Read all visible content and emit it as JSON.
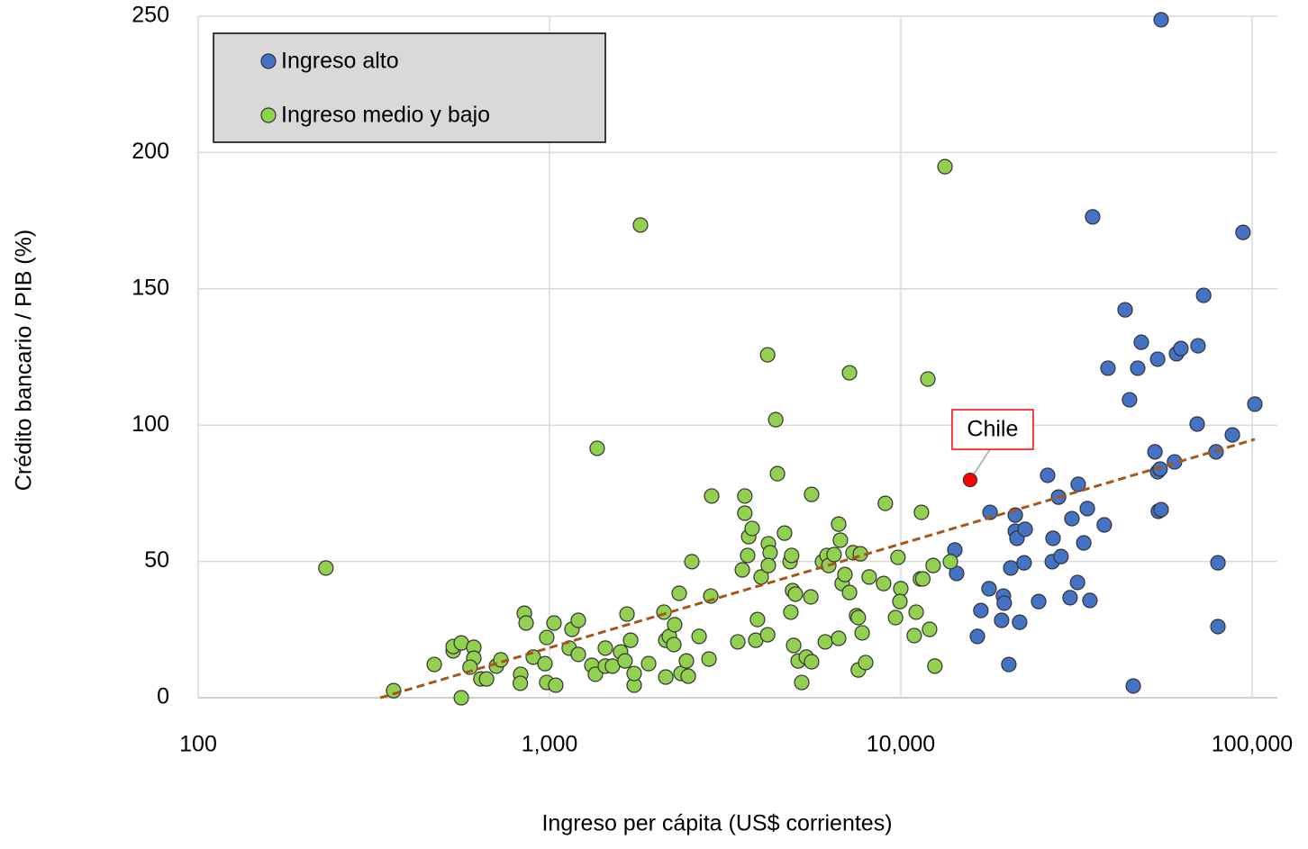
{
  "chart_data": {
    "type": "scatter",
    "x_label": "Ingreso per cápita (US$ corrientes)",
    "y_label": "Crédito bancario / PIB (%)",
    "xlim": [
      100,
      118000
    ],
    "xscale": "log",
    "xticks": [
      100,
      {
        "value": 1000,
        "label": "1,000"
      },
      {
        "value": 10000,
        "label": "10,000"
      },
      {
        "value": 100000,
        "label": "100,000"
      }
    ],
    "ylim": [
      0,
      250
    ],
    "yticks": [
      0,
      50,
      100,
      150,
      200,
      250
    ],
    "grid": true,
    "legend": "upper left",
    "series": [
      {
        "name": "Ingreso alto",
        "color": "#4472c4",
        "x": [
          14250,
          14420,
          16520,
          16900,
          17830,
          17950,
          19360,
          19590,
          19700,
          20300,
          20560,
          21180,
          21180,
          21410,
          21790,
          22590,
          22440,
          24680,
          26180,
          26980,
          27120,
          28120,
          28580,
          30320,
          30690,
          31840,
          31990,
          33170,
          33960,
          34540,
          35160,
          37950,
          38870,
          43500,
          44780,
          45890,
          47240,
          48380,
          52890,
          53840,
          53840,
          54090,
          54710,
          55080,
          55080,
          60140,
          60930,
          62700,
          69760,
          70150,
          72780,
          78950,
          79930,
          79930,
          87870,
          94210,
          101800
        ],
        "values": [
          54.2,
          45.6,
          22.5,
          32,
          40,
          68,
          28.4,
          37.3,
          34.7,
          12.2,
          47.6,
          67,
          61.1,
          58.5,
          27.7,
          61.8,
          49.5,
          35.3,
          81.6,
          49.9,
          58.5,
          73.6,
          51.8,
          36.7,
          65.7,
          42.3,
          78.3,
          56.8,
          69.4,
          35.7,
          176.4,
          63.4,
          120.9,
          142.3,
          109.3,
          4.3,
          120.9,
          130.4,
          90.2,
          124.2,
          82.9,
          68.4,
          83.9,
          248.7,
          69,
          86.5,
          126.2,
          128.1,
          100.4,
          129.1,
          147.6,
          90.2,
          49.5,
          26.1,
          96.4,
          170.7,
          107.7
        ]
      },
      {
        "name": "Ingreso medio y bajo",
        "color": "#92d050",
        "x": [
          231,
          360,
          470,
          532,
          532,
          561,
          561,
          609,
          609,
          594,
          638,
          662,
          706,
          727,
          848,
          858,
          828,
          826,
          899,
          982,
          1030,
          971,
          982,
          1042,
          1138,
          1159,
          1208,
          1208,
          1320,
          1351,
          1367,
          1442,
          1442,
          1511,
          1594,
          1641,
          1662,
          1702,
          1742,
          1742,
          1815,
          1915,
          2117,
          2143,
          2143,
          2193,
          2259,
          2271,
          2340,
          2368,
          2453,
          2483,
          2542,
          2666,
          2845,
          2878,
          2895,
          3436,
          3539,
          3598,
          3598,
          3665,
          3690,
          3776,
          3865,
          3909,
          4005,
          4178,
          4178,
          4197,
          4246,
          4197,
          4405,
          4456,
          4667,
          4839,
          4864,
          4890,
          4920,
          4954,
          5012,
          5105,
          5224,
          5383,
          5546,
          5572,
          5572,
          5984,
          6095,
          6166,
          6237,
          6457,
          6653,
          6653,
          6730,
          6808,
          6934,
          7145,
          7145,
          7311,
          7482,
          7568,
          7568,
          7674,
          7762,
          7943,
          8128,
          8933,
          9036,
          9661,
          9817,
          10000,
          9941,
          10918,
          11060,
          11376,
          11552,
          11448,
          11940,
          12077,
          12360,
          12503,
          13360,
          13843
        ],
        "values": [
          47.6,
          2.6,
          12.2,
          17.2,
          18.8,
          20.1,
          0,
          18.5,
          14.5,
          11.2,
          6.9,
          6.9,
          11.6,
          13.9,
          31,
          27.4,
          8.6,
          5.3,
          14.9,
          22.1,
          27.4,
          12.5,
          5.6,
          4.6,
          18.2,
          25.1,
          28.4,
          15.9,
          11.9,
          8.6,
          91.5,
          18.2,
          11.6,
          11.6,
          16.8,
          13.5,
          30.7,
          21.1,
          4.6,
          8.9,
          173.4,
          12.5,
          31.4,
          21.1,
          7.6,
          22.5,
          19.5,
          26.8,
          38.3,
          8.9,
          13.5,
          7.9,
          49.9,
          22.5,
          14.2,
          37.3,
          74,
          20.5,
          46.9,
          74,
          67.7,
          52.2,
          59.1,
          62.1,
          21.1,
          28.7,
          44.3,
          125.8,
          23.1,
          56.5,
          53.2,
          48.5,
          102,
          82.2,
          60.4,
          49.9,
          31.4,
          52.2,
          39.3,
          19.2,
          38,
          13.5,
          5.6,
          14.9,
          37,
          74.6,
          13.2,
          49.9,
          20.5,
          52.2,
          48.5,
          52.5,
          21.8,
          63.7,
          57.8,
          41.9,
          45.2,
          119.2,
          38.6,
          53.2,
          30.1,
          10.2,
          29.4,
          52.8,
          23.8,
          12.9,
          44.3,
          41.9,
          71.3,
          29.4,
          51.5,
          40,
          35.3,
          22.8,
          31.4,
          43.6,
          43.6,
          68,
          116.9,
          25.1,
          48.5,
          11.6,
          194.8,
          49.9
        ]
      }
    ],
    "annotations": [
      {
        "text": "Chile",
        "x": 15750,
        "y": 79.9,
        "color": "#ff0000"
      }
    ],
    "trendline": {
      "color": "#a5561a",
      "x": [
        330,
        101800
      ],
      "y": [
        0,
        94.8
      ]
    }
  }
}
